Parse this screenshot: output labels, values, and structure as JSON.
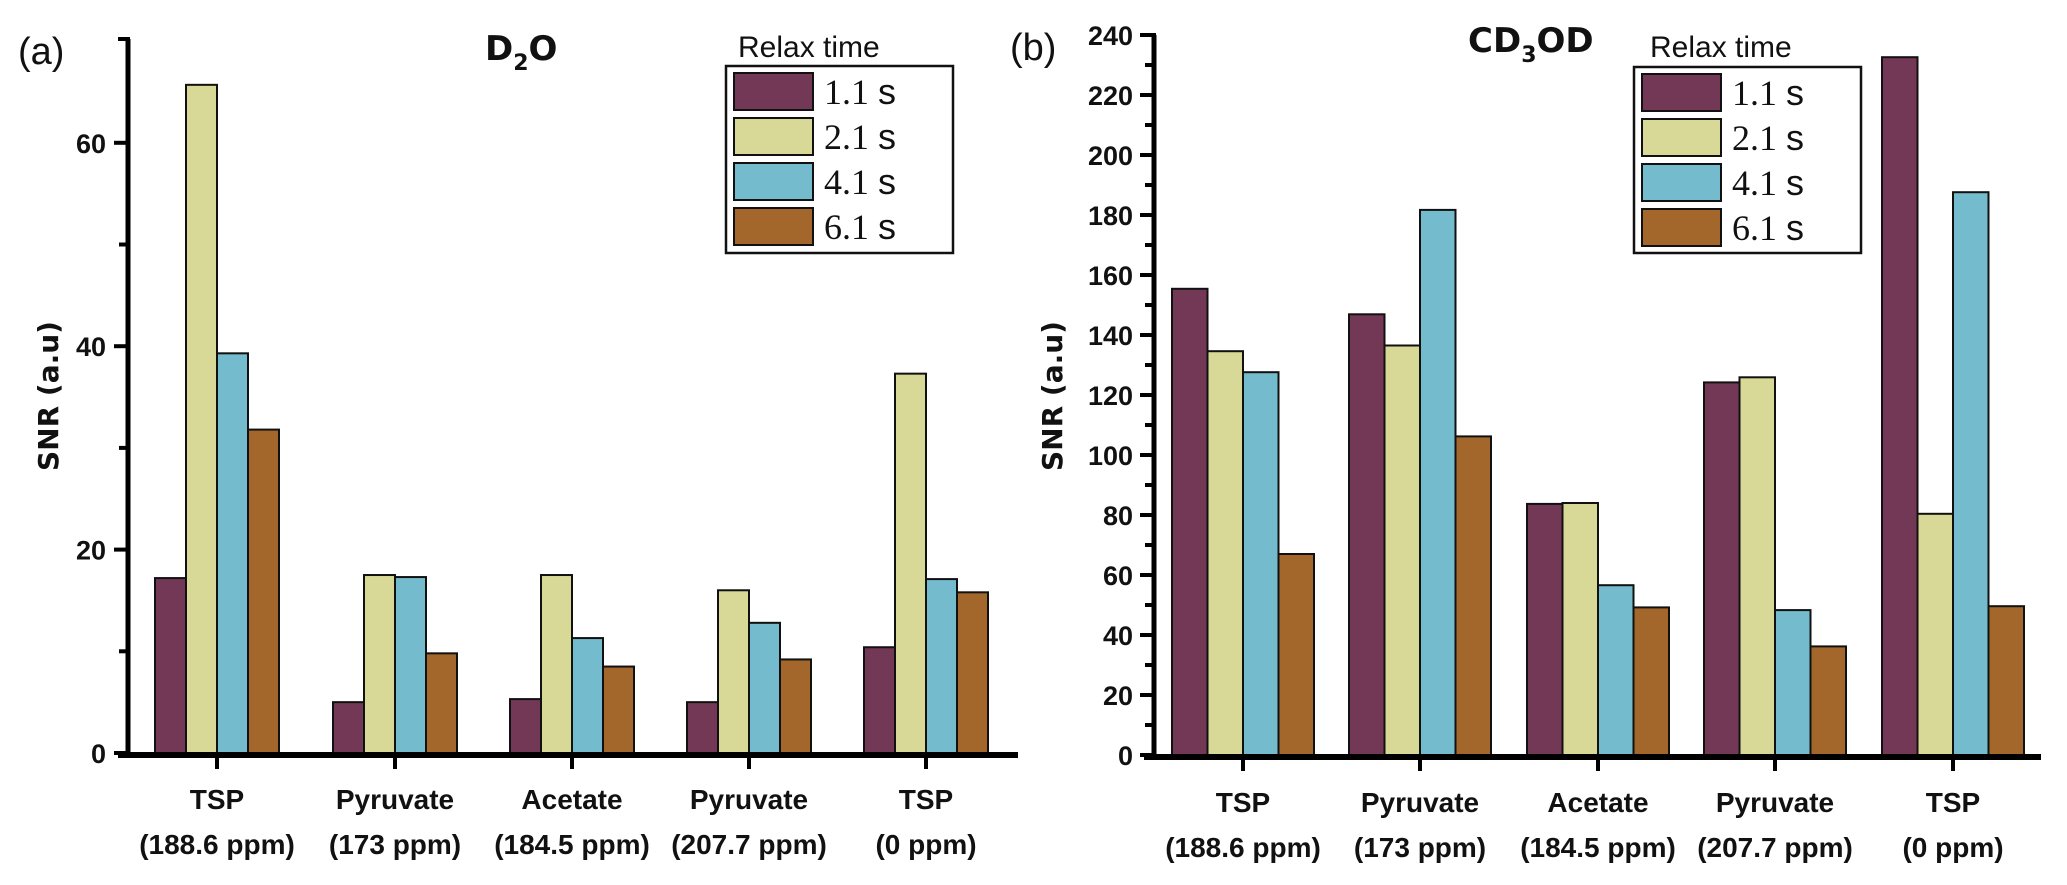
{
  "chart_data": [
    {
      "type": "bar",
      "panel": "(a)",
      "title": "D2O",
      "title_parts": {
        "main": "D",
        "sub": "2",
        "rest": "O"
      },
      "xlabel": "",
      "ylabel": "SNR (a.u)",
      "ylim": [
        0,
        70
      ],
      "yticks": [
        0,
        20,
        40,
        60
      ],
      "yminor_step": 10,
      "grid": false,
      "legend_title": "Relax time",
      "legend_position": "top-right",
      "categories": [
        {
          "name": "TSP",
          "sub": "(188.6 ppm)"
        },
        {
          "name": "Pyruvate",
          "sub": "(173 ppm)"
        },
        {
          "name": "Acetate",
          "sub": "(184.5 ppm)"
        },
        {
          "name": "Pyruvate",
          "sub": "(207.7 ppm)"
        },
        {
          "name": "TSP",
          "sub": "(0 ppm)"
        }
      ],
      "series": [
        {
          "name": "1.1 s",
          "num": "1.1",
          "unit": "s",
          "color": "#733855",
          "values": [
            17.2,
            5.0,
            5.3,
            5.0,
            10.4
          ]
        },
        {
          "name": "2.1 s",
          "num": "2.1",
          "unit": "s",
          "color": "#d8d996",
          "values": [
            65.7,
            17.5,
            17.5,
            16.0,
            37.3
          ]
        },
        {
          "name": "4.1 s",
          "num": "4.1",
          "unit": "s",
          "color": "#74bbcd",
          "values": [
            39.3,
            17.3,
            11.3,
            12.8,
            17.1
          ]
        },
        {
          "name": "6.1 s",
          "num": "6.1",
          "unit": "s",
          "color": "#a3672c",
          "values": [
            31.8,
            9.8,
            8.5,
            9.2,
            15.8
          ]
        }
      ]
    },
    {
      "type": "bar",
      "panel": "(b)",
      "title": "CD3OD",
      "title_parts": {
        "main": "CD",
        "sub": "3",
        "rest": "OD"
      },
      "xlabel": "",
      "ylabel": "SNR (a.u)",
      "ylim": [
        0,
        240
      ],
      "yticks": [
        0,
        20,
        40,
        60,
        80,
        100,
        120,
        140,
        160,
        180,
        200,
        220,
        240
      ],
      "yminor_step": 10,
      "grid": false,
      "legend_title": "Relax time",
      "legend_position": "top-right",
      "categories": [
        {
          "name": "TSP",
          "sub": "(188.6 ppm)"
        },
        {
          "name": "Pyruvate",
          "sub": "(173 ppm)"
        },
        {
          "name": "Acetate",
          "sub": "(184.5 ppm)"
        },
        {
          "name": "Pyruvate",
          "sub": "(207.7 ppm)"
        },
        {
          "name": "TSP",
          "sub": "(0 ppm)"
        }
      ],
      "series": [
        {
          "name": "1.1 s",
          "num": "1.1",
          "unit": "s",
          "color": "#733855",
          "values": [
            155.4,
            146.9,
            83.7,
            124.2,
            232.6
          ]
        },
        {
          "name": "2.1 s",
          "num": "2.1",
          "unit": "s",
          "color": "#d8d996",
          "values": [
            134.6,
            136.5,
            84.0,
            125.9,
            80.4
          ]
        },
        {
          "name": "4.1 s",
          "num": "4.1",
          "unit": "s",
          "color": "#74bbcd",
          "values": [
            127.6,
            181.7,
            56.6,
            48.3,
            187.6
          ]
        },
        {
          "name": "6.1 s",
          "num": "6.1",
          "unit": "s",
          "color": "#a3672c",
          "values": [
            67.0,
            106.2,
            49.2,
            36.2,
            49.6
          ]
        }
      ]
    }
  ]
}
